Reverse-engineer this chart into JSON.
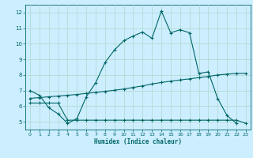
{
  "title": "",
  "xlabel": "Humidex (Indice chaleur)",
  "background_color": "#cceeff",
  "grid_color": "#b0d8cc",
  "line_color": "#006666",
  "xlim": [
    -0.5,
    23.5
  ],
  "ylim": [
    4.5,
    12.5
  ],
  "xticks": [
    0,
    1,
    2,
    3,
    4,
    5,
    6,
    7,
    8,
    9,
    10,
    11,
    12,
    13,
    14,
    15,
    16,
    17,
    18,
    19,
    20,
    21,
    22,
    23
  ],
  "yticks": [
    5,
    6,
    7,
    8,
    9,
    10,
    11,
    12
  ],
  "line1_x": [
    0,
    1,
    2,
    3,
    4,
    5,
    6,
    7,
    8,
    9,
    10,
    11,
    12,
    13,
    14,
    15,
    16,
    17,
    18,
    19,
    20,
    21,
    22
  ],
  "line1_y": [
    7.0,
    6.7,
    5.9,
    5.5,
    4.9,
    5.2,
    6.6,
    7.5,
    8.8,
    9.6,
    10.2,
    10.5,
    10.75,
    10.35,
    12.1,
    10.7,
    10.9,
    10.7,
    8.1,
    8.2,
    6.5,
    5.4,
    4.9
  ],
  "line2_x": [
    0,
    1,
    2,
    3,
    4,
    5,
    6,
    7,
    8,
    9,
    10,
    11,
    12,
    13,
    14,
    15,
    16,
    17,
    18,
    19,
    20,
    21,
    22,
    23
  ],
  "line2_y": [
    6.2,
    6.2,
    6.2,
    6.2,
    5.1,
    5.1,
    5.1,
    5.1,
    5.1,
    5.1,
    5.1,
    5.1,
    5.1,
    5.1,
    5.1,
    5.1,
    5.1,
    5.1,
    5.1,
    5.1,
    5.1,
    5.1,
    5.1,
    4.9
  ],
  "line3_x": [
    0,
    1,
    2,
    3,
    4,
    5,
    6,
    7,
    8,
    9,
    10,
    11,
    12,
    13,
    14,
    15,
    16,
    17,
    18,
    19,
    20,
    21,
    22,
    23
  ],
  "line3_y": [
    6.5,
    6.55,
    6.6,
    6.65,
    6.7,
    6.75,
    6.82,
    6.88,
    6.95,
    7.02,
    7.1,
    7.2,
    7.3,
    7.42,
    7.52,
    7.6,
    7.68,
    7.75,
    7.83,
    7.9,
    8.0,
    8.05,
    8.1,
    8.1
  ],
  "xlabel_fontsize": 5.5,
  "tick_fontsize": 4.5,
  "lw": 0.8,
  "marker_size": 2.5
}
